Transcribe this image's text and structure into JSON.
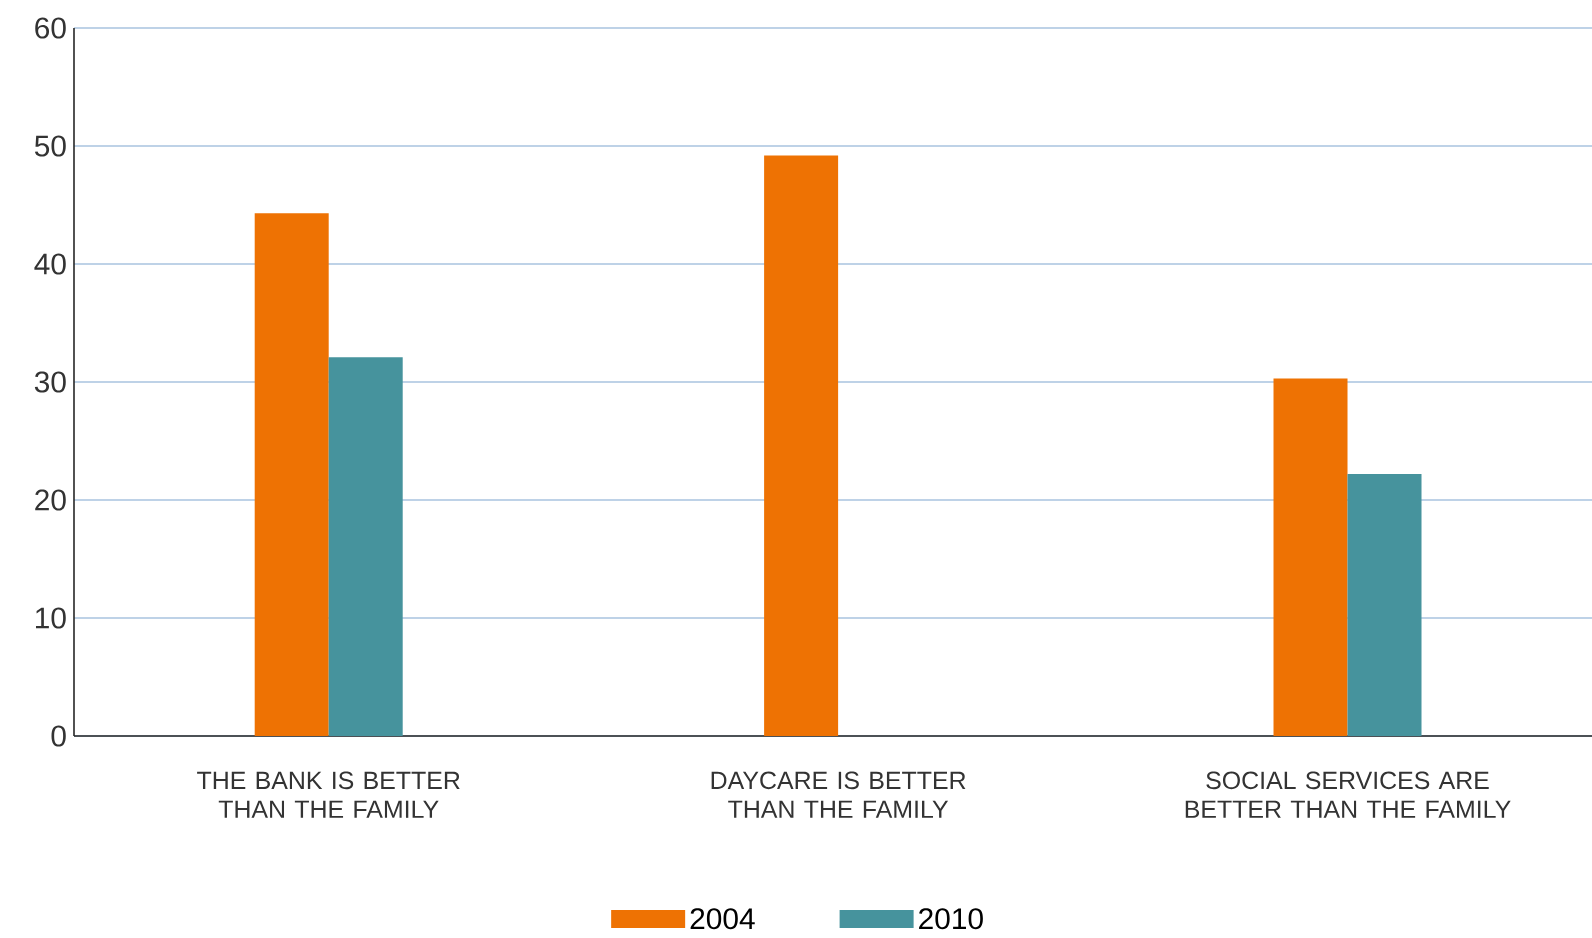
{
  "chart_data": {
    "type": "bar",
    "categories": [
      "THE BANK IS BETTER THAN THE FAMILY",
      "DAYCARE IS BETTER THAN THE FAMILY",
      "SOCIAL SERVICES ARE BETTER THAN THE FAMILY"
    ],
    "series": [
      {
        "name": "2004",
        "color": "#ee7203",
        "values": [
          44.3,
          49.2,
          30.3
        ]
      },
      {
        "name": "2010",
        "color": "#46939d",
        "values": [
          32.1,
          null,
          22.2
        ]
      }
    ],
    "ylim": [
      0,
      60
    ],
    "yticks": [
      0,
      10,
      20,
      30,
      40,
      50,
      60
    ],
    "grid": "y",
    "legend": "bottom"
  }
}
